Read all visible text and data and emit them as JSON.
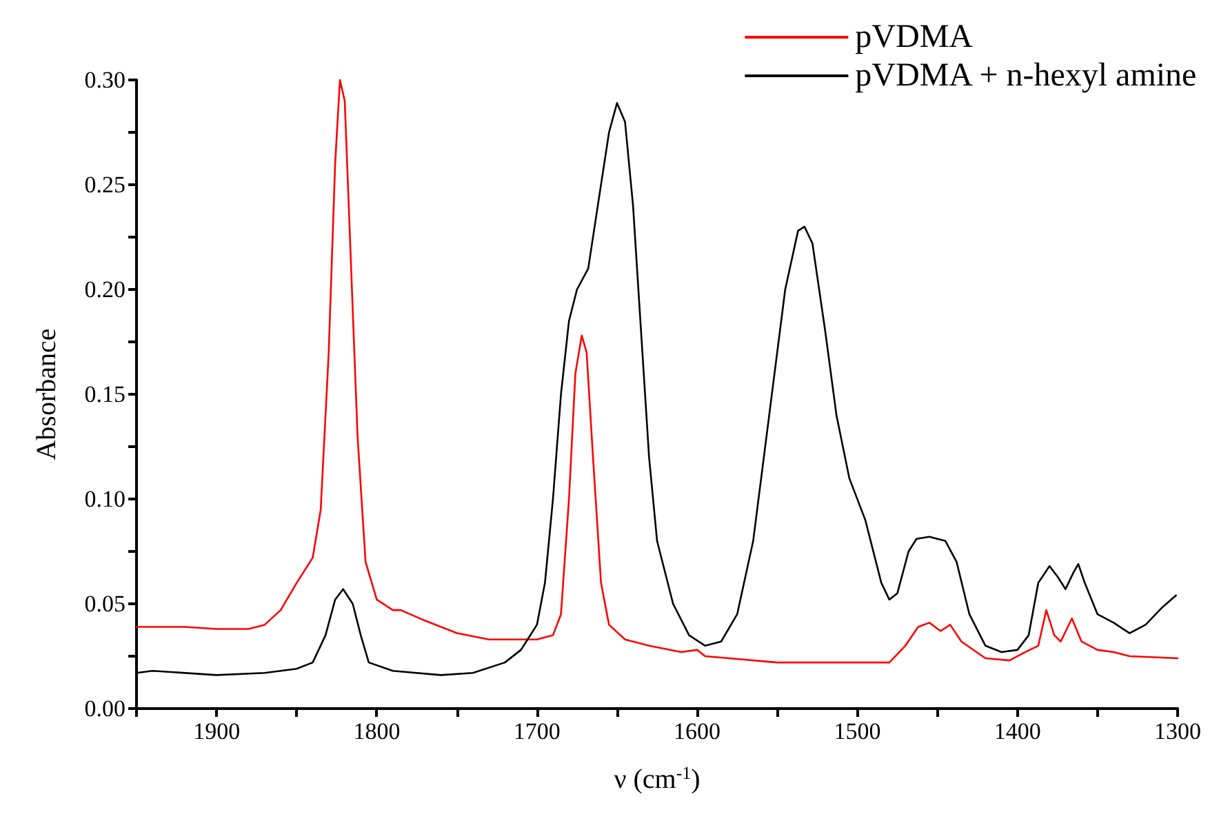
{
  "chart_data": {
    "type": "line",
    "xlabel": "ν (cm$^{-1}$)",
    "ylabel": "Absorbance",
    "xlim": [
      1950,
      1300
    ],
    "ylim": [
      0,
      0.3
    ],
    "xticks": [
      {
        "value": 1950,
        "label": null
      },
      1900,
      {
        "value": 1850,
        "label": null
      },
      1800,
      {
        "value": 1750,
        "label": null
      },
      1700,
      {
        "value": 1650,
        "label": null
      },
      1600,
      {
        "value": 1550,
        "label": null
      },
      1500,
      {
        "value": 1450,
        "label": null
      },
      1400,
      {
        "value": 1350,
        "label": null
      },
      1300
    ],
    "yticks": [
      {
        "value": 0,
        "label": "0.00"
      },
      {
        "value": 0.025,
        "label": null
      },
      {
        "value": 0.05,
        "label": "0.05"
      },
      {
        "value": 0.075,
        "label": null
      },
      {
        "value": 0.1,
        "label": "0.10"
      },
      {
        "value": 0.125,
        "label": null
      },
      {
        "value": 0.15,
        "label": "0.15"
      },
      {
        "value": 0.175,
        "label": null
      },
      {
        "value": 0.2,
        "label": "0.20"
      },
      {
        "value": 0.225,
        "label": null
      },
      {
        "value": 0.25,
        "label": "0.25"
      },
      {
        "value": 0.275,
        "label": null
      },
      {
        "value": 0.3,
        "label": "0.30"
      }
    ],
    "grid": false,
    "legend": "top right",
    "marker": "none",
    "line_style": "solid",
    "series": [
      {
        "name": "pVDMA",
        "color": "#ff0000",
        "x": [
          1950,
          1920,
          1900,
          1880,
          1870,
          1860,
          1850,
          1840,
          1835,
          1830,
          1826,
          1823,
          1820,
          1817,
          1812,
          1807,
          1800,
          1790,
          1785,
          1770,
          1750,
          1730,
          1700,
          1690,
          1685,
          1680,
          1676,
          1672,
          1669,
          1665,
          1660,
          1655,
          1645,
          1630,
          1610,
          1600,
          1595,
          1580,
          1550,
          1500,
          1480,
          1470,
          1462,
          1455,
          1448,
          1442,
          1435,
          1420,
          1405,
          1395,
          1387,
          1382,
          1377,
          1373,
          1366,
          1360,
          1350,
          1340,
          1330,
          1300
        ],
        "values": [
          0.039,
          0.039,
          0.038,
          0.038,
          0.04,
          0.047,
          0.06,
          0.072,
          0.095,
          0.17,
          0.26,
          0.3,
          0.29,
          0.23,
          0.13,
          0.07,
          0.052,
          0.047,
          0.047,
          0.042,
          0.036,
          0.033,
          0.033,
          0.035,
          0.045,
          0.1,
          0.16,
          0.178,
          0.17,
          0.12,
          0.06,
          0.04,
          0.033,
          0.03,
          0.027,
          0.028,
          0.025,
          0.024,
          0.022,
          0.022,
          0.022,
          0.03,
          0.039,
          0.041,
          0.037,
          0.04,
          0.032,
          0.024,
          0.023,
          0.027,
          0.03,
          0.047,
          0.035,
          0.032,
          0.043,
          0.032,
          0.028,
          0.027,
          0.025,
          0.024
        ]
      },
      {
        "name": "pVDMA + n-hexyl amine",
        "color": "#000000",
        "x": [
          1950,
          1940,
          1900,
          1870,
          1850,
          1840,
          1832,
          1826,
          1821,
          1815,
          1810,
          1805,
          1790,
          1760,
          1740,
          1720,
          1710,
          1700,
          1695,
          1690,
          1685,
          1680,
          1675,
          1668,
          1662,
          1655,
          1650,
          1645,
          1640,
          1635,
          1630,
          1625,
          1615,
          1605,
          1595,
          1585,
          1575,
          1565,
          1555,
          1545,
          1537,
          1533,
          1528,
          1520,
          1513,
          1505,
          1495,
          1485,
          1480,
          1475,
          1468,
          1463,
          1455,
          1445,
          1438,
          1430,
          1420,
          1410,
          1400,
          1393,
          1387,
          1380,
          1375,
          1370,
          1365,
          1362,
          1358,
          1350,
          1340,
          1330,
          1320,
          1310,
          1301
        ],
        "values": [
          0.017,
          0.018,
          0.016,
          0.017,
          0.019,
          0.022,
          0.035,
          0.052,
          0.057,
          0.05,
          0.035,
          0.022,
          0.018,
          0.016,
          0.017,
          0.022,
          0.028,
          0.04,
          0.06,
          0.1,
          0.15,
          0.185,
          0.2,
          0.21,
          0.24,
          0.275,
          0.289,
          0.28,
          0.24,
          0.18,
          0.12,
          0.08,
          0.05,
          0.035,
          0.03,
          0.032,
          0.045,
          0.08,
          0.14,
          0.2,
          0.228,
          0.23,
          0.222,
          0.18,
          0.14,
          0.11,
          0.09,
          0.06,
          0.052,
          0.055,
          0.075,
          0.081,
          0.082,
          0.08,
          0.07,
          0.045,
          0.03,
          0.027,
          0.028,
          0.035,
          0.06,
          0.068,
          0.063,
          0.057,
          0.065,
          0.069,
          0.06,
          0.045,
          0.041,
          0.036,
          0.04,
          0.048,
          0.054
        ]
      }
    ]
  }
}
